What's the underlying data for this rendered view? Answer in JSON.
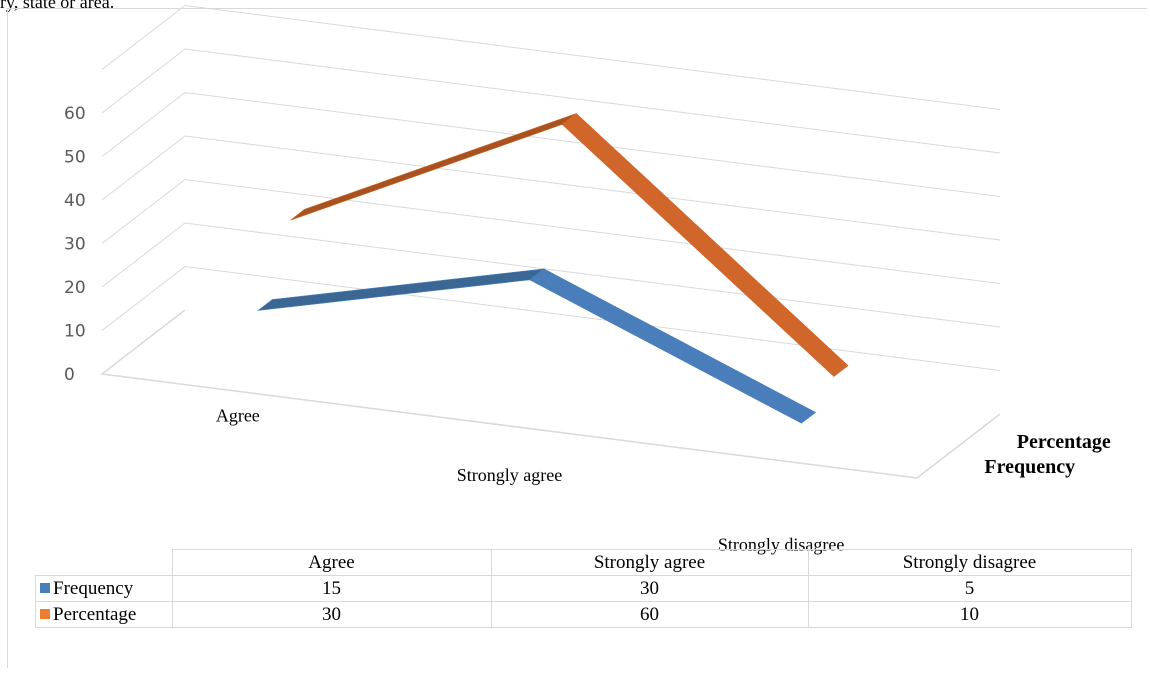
{
  "top_text": "ry, state or area.",
  "chart_data": {
    "type": "line",
    "style": "3d-line",
    "categories": [
      "Agree",
      "Strongly agree",
      "Strongly disagree"
    ],
    "series": [
      {
        "name": "Frequency",
        "values": [
          15,
          30,
          5
        ],
        "color": "#4a7ebb",
        "top_color": "#3a6794"
      },
      {
        "name": "Percentage",
        "values": [
          30,
          60,
          10
        ],
        "color": "#d0662a",
        "top_color": "#a85220"
      }
    ],
    "yticks": [
      0,
      10,
      20,
      30,
      40,
      50,
      60
    ],
    "ylim": [
      0,
      75
    ],
    "grid": true,
    "legend": "data-table-below",
    "title": "",
    "xlabel": "",
    "ylabel": ""
  }
}
